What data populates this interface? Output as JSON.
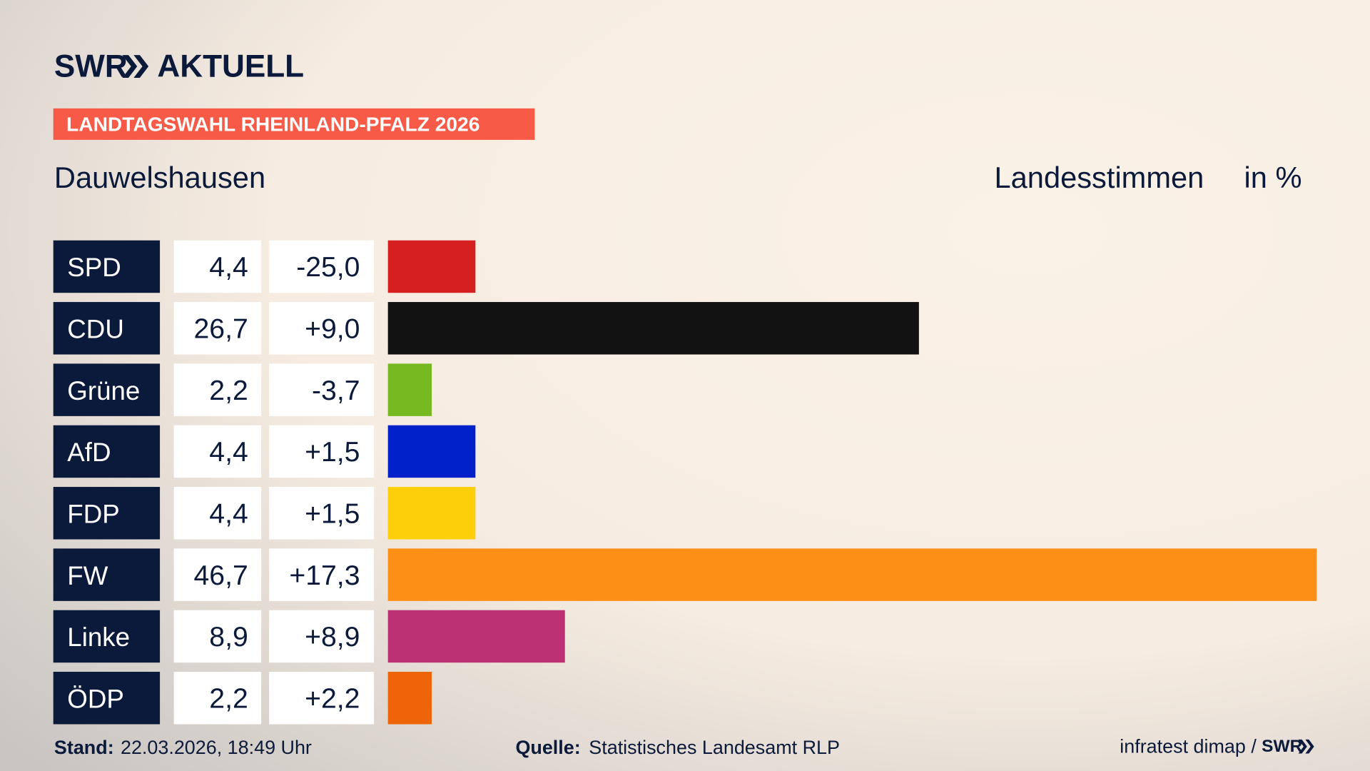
{
  "logo": {
    "brand": "SWR",
    "product": "AKTUELL"
  },
  "banner": "LANDTAGSWAHL RHEINLAND-PFALZ 2026",
  "chart_data": {
    "type": "bar",
    "orientation": "horizontal",
    "title": "Dauwelshausen",
    "subtitle": "Landesstimmen",
    "unit": "in %",
    "categories": [
      "SPD",
      "CDU",
      "Grüne",
      "AfD",
      "FDP",
      "FW",
      "Linke",
      "ÖDP"
    ],
    "values": [
      4.4,
      26.7,
      2.2,
      4.4,
      4.4,
      46.7,
      8.9,
      2.2
    ],
    "value_labels": [
      "4,4",
      "26,7",
      "2,2",
      "4,4",
      "4,4",
      "46,7",
      "8,9",
      "2,2"
    ],
    "change_labels": [
      "-25,0",
      "+9,0",
      "-3,7",
      "+1,5",
      "+1,5",
      "+17,3",
      "+8,9",
      "+2,2"
    ],
    "colors": [
      "#d61f20",
      "#121212",
      "#76b921",
      "#0021c9",
      "#fdcf0b",
      "#fd8f17",
      "#bc3173",
      "#ee6408"
    ]
  },
  "footer": {
    "date_label": "Stand:",
    "date": "22.03.2026, 18:49 Uhr",
    "source_label": "Quelle:",
    "source": "Statistisches Landesamt RLP",
    "credit": "infratest dimap /",
    "credit_brand": "SWR"
  }
}
